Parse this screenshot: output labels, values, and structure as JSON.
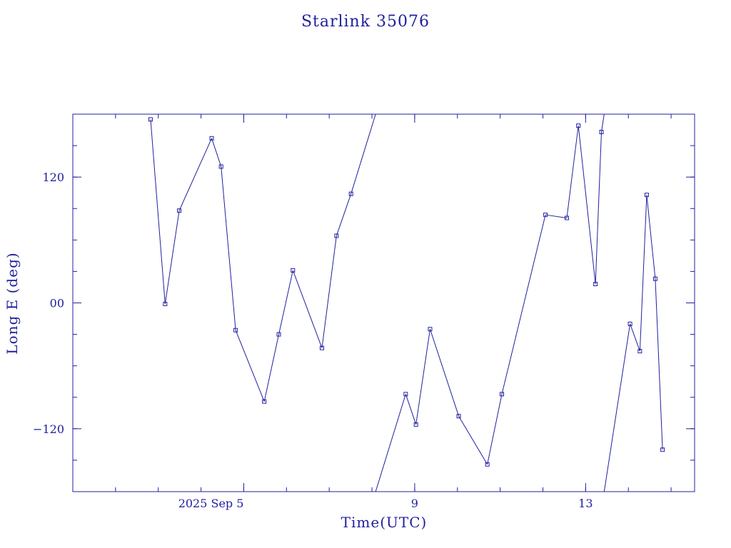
{
  "chart_data": {
    "type": "line",
    "title": "Starlink 35076",
    "xlabel": "Time(UTC)",
    "ylabel": "Long E (deg)",
    "x_ticks": [
      {
        "label": "2025 Sep  5",
        "x": 5
      },
      {
        "label": "9",
        "x": 9
      },
      {
        "label": "13",
        "x": 13
      }
    ],
    "y_ticks": [
      {
        "label": "120",
        "y": 120
      },
      {
        "label": "00",
        "y": 0
      },
      {
        "label": "−120",
        "y": -120
      }
    ],
    "xlim": [
      1.0,
      15.55
    ],
    "ylim": [
      -180,
      180
    ],
    "wrap": [
      -180,
      180
    ],
    "grid": false,
    "series": [
      {
        "points": [
          [
            2.82,
            175
          ],
          [
            3.16,
            -1
          ],
          [
            3.49,
            88
          ],
          [
            4.25,
            157
          ],
          [
            4.47,
            130
          ],
          [
            4.81,
            -26
          ],
          [
            5.48,
            -94
          ],
          [
            5.82,
            -30
          ],
          [
            6.15,
            31
          ],
          [
            6.83,
            -43
          ],
          [
            7.17,
            64
          ],
          [
            7.51,
            104
          ],
          [
            8.79,
            -87
          ],
          [
            9.03,
            -116
          ],
          [
            9.36,
            -25
          ],
          [
            10.03,
            -108
          ],
          [
            10.7,
            -154
          ],
          [
            11.04,
            -87
          ],
          [
            12.06,
            84
          ],
          [
            12.56,
            81
          ],
          [
            12.83,
            169
          ],
          [
            13.23,
            18
          ],
          [
            13.37,
            163
          ],
          [
            14.04,
            -20
          ],
          [
            14.27,
            -46
          ],
          [
            14.43,
            103
          ],
          [
            14.63,
            23
          ],
          [
            14.8,
            -140
          ]
        ]
      }
    ]
  },
  "colors": {
    "ink": "#2020a0"
  }
}
